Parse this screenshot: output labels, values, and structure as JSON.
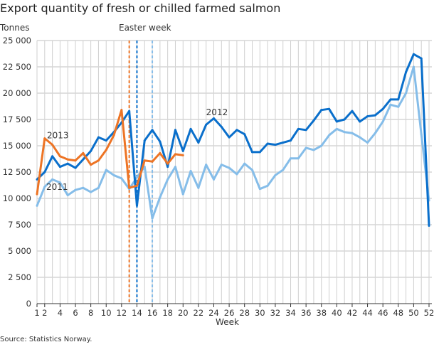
{
  "chart_data": {
    "type": "line",
    "title": "Export quantity of fresh or chilled farmed salmon",
    "ylabel": "Tonnes",
    "xlabel": "Week",
    "source": "Source: Statistics Norway.",
    "annotation": "Easter week",
    "ylim": [
      0,
      25000
    ],
    "xlim": [
      1,
      52
    ],
    "yticks": [
      "0",
      "2 500",
      "5 000",
      "7 500",
      "10 000",
      "12 500",
      "15 000",
      "17 500",
      "20 000",
      "22 500",
      "25 000"
    ],
    "ytick_values": [
      0,
      2500,
      5000,
      7500,
      10000,
      12500,
      15000,
      17500,
      20000,
      22500,
      25000
    ],
    "xticks": [
      1,
      2,
      4,
      6,
      8,
      10,
      12,
      14,
      16,
      18,
      20,
      22,
      24,
      26,
      28,
      30,
      32,
      34,
      36,
      38,
      40,
      42,
      44,
      46,
      48,
      50,
      52
    ],
    "grid": true,
    "series": [
      {
        "name": "2011",
        "color": "#85bde9",
        "easter_week": 16,
        "values": [
          9300,
          11100,
          11800,
          11500,
          10300,
          10800,
          11000,
          10600,
          11000,
          12700,
          12200,
          11900,
          10900,
          12000,
          13000,
          8100,
          10100,
          11800,
          13000,
          10400,
          12600,
          11000,
          13200,
          11800,
          13200,
          12900,
          12300,
          13300,
          12700,
          10900,
          11200,
          12200,
          12700,
          13800,
          13800,
          14800,
          14600,
          15000,
          16000,
          16600,
          16300,
          16200,
          15800,
          15300,
          16200,
          17300,
          18900,
          18700,
          20000,
          22500,
          16100,
          9800
        ]
      },
      {
        "name": "2012",
        "color": "#0a6fcb",
        "easter_week": 14,
        "values": [
          11800,
          12500,
          14000,
          13000,
          13300,
          12900,
          13700,
          14500,
          15800,
          15500,
          16300,
          17200,
          18300,
          9300,
          15500,
          16500,
          15400,
          13000,
          16500,
          14500,
          16600,
          15300,
          17000,
          17600,
          16800,
          15800,
          16500,
          16100,
          14400,
          14400,
          15200,
          15100,
          15300,
          15500,
          16600,
          16500,
          17400,
          18400,
          18500,
          17300,
          17500,
          18300,
          17300,
          17800,
          17900,
          18500,
          19400,
          19400,
          22000,
          23700,
          23300,
          7400
        ]
      },
      {
        "name": "2013",
        "color": "#ed7425",
        "easter_week": 13,
        "values": [
          10400,
          15700,
          15100,
          14000,
          13700,
          13600,
          14300,
          13200,
          13600,
          14600,
          16000,
          18400,
          11000,
          11200,
          13600,
          13500,
          14300,
          13300,
          14200,
          14100
        ]
      }
    ],
    "label_positions_week_value": {
      "2011": [
        2.2,
        10800
      ],
      "2012": [
        23,
        17900
      ],
      "2013": [
        2.3,
        15700
      ]
    }
  }
}
